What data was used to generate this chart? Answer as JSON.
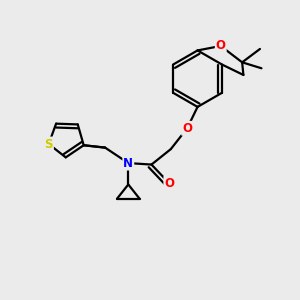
{
  "background_color": "#ebebeb",
  "atom_colors": {
    "O": "#ff0000",
    "N": "#0000ff",
    "S": "#cccc00",
    "C": "#000000"
  },
  "figsize": [
    3.0,
    3.0
  ],
  "dpi": 100
}
